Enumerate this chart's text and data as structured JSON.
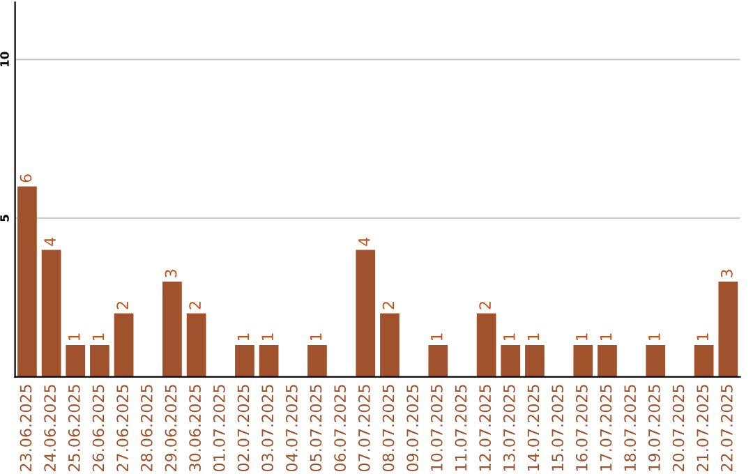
{
  "chart_data": {
    "type": "bar",
    "categories": [
      "23.06.2025",
      "24.06.2025",
      "25.06.2025",
      "26.06.2025",
      "27.06.2025",
      "28.06.2025",
      "29.06.2025",
      "30.06.2025",
      "01.07.2025",
      "02.07.2025",
      "03.07.2025",
      "04.07.2025",
      "05.07.2025",
      "06.07.2025",
      "07.07.2025",
      "08.07.2025",
      "09.07.2025",
      "10.07.2025",
      "11.07.2025",
      "12.07.2025",
      "13.07.2025",
      "14.07.2025",
      "15.07.2025",
      "16.07.2025",
      "17.07.2025",
      "18.07.2025",
      "19.07.2025",
      "20.07.2025",
      "21.07.2025",
      "22.07.2025"
    ],
    "values": [
      6,
      4,
      1,
      1,
      2,
      0,
      3,
      2,
      0,
      1,
      1,
      0,
      1,
      0,
      4,
      2,
      0,
      1,
      0,
      2,
      1,
      1,
      0,
      1,
      1,
      0,
      1,
      0,
      1,
      3
    ],
    "value_labels": [
      "6",
      "4",
      "1",
      "1",
      "2",
      null,
      "3",
      "2",
      null,
      "1",
      "1",
      null,
      "1",
      null,
      "4",
      "2",
      null,
      "1",
      null,
      "2",
      "1",
      "1",
      null,
      "1",
      "1",
      null,
      "1",
      null,
      "1",
      "3"
    ],
    "color": "#a0522d",
    "ylim": [
      0,
      11.8
    ],
    "yticks": [
      5,
      10
    ],
    "grid": "y"
  }
}
